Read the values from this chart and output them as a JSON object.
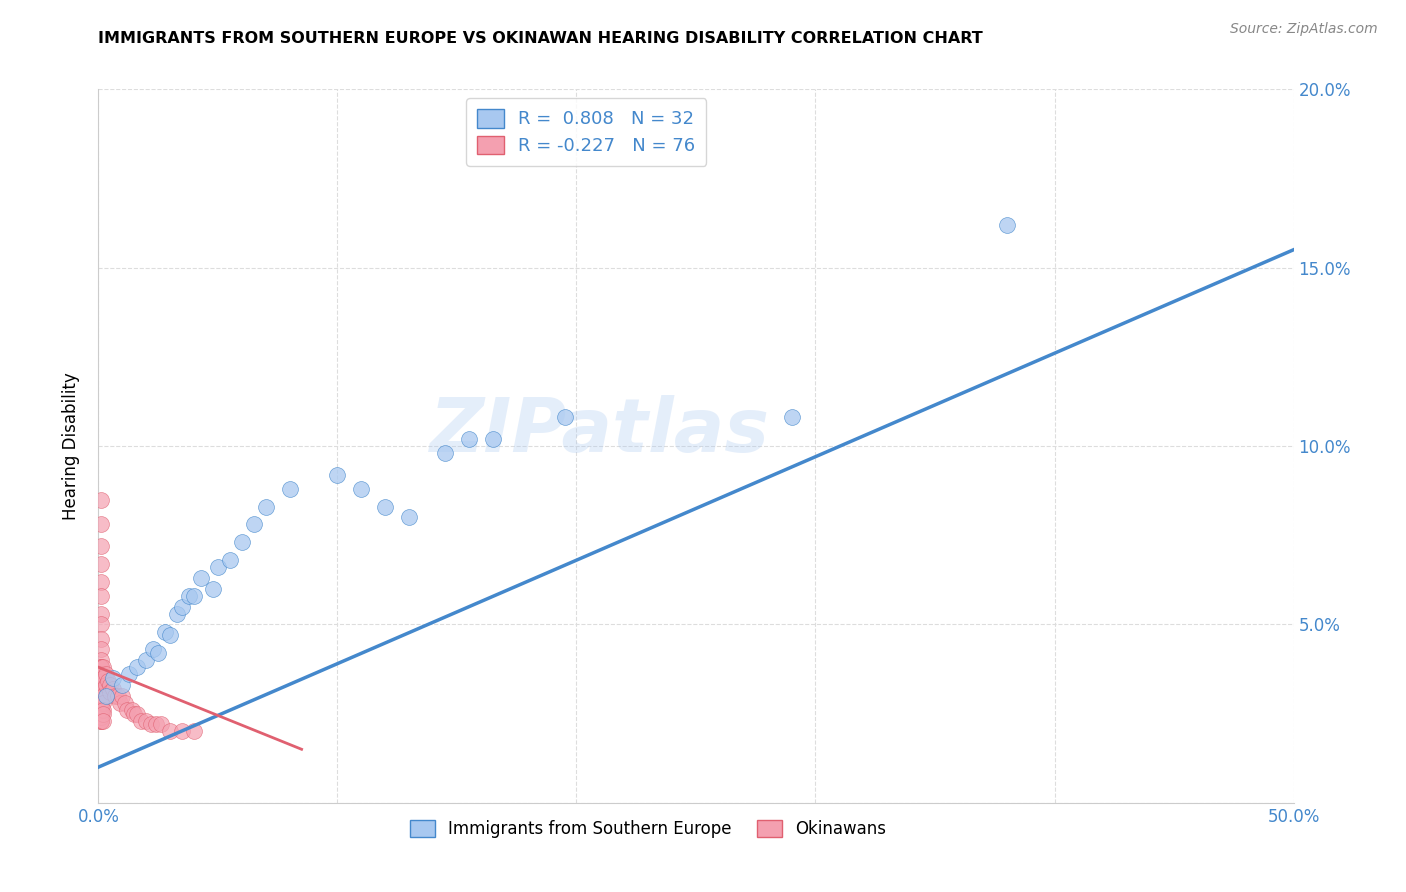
{
  "title": "IMMIGRANTS FROM SOUTHERN EUROPE VS OKINAWAN HEARING DISABILITY CORRELATION CHART",
  "source": "Source: ZipAtlas.com",
  "ylabel": "Hearing Disability",
  "xlim": [
    0.0,
    0.5
  ],
  "ylim": [
    0.0,
    0.2
  ],
  "xticks": [
    0.0,
    0.1,
    0.2,
    0.3,
    0.4,
    0.5
  ],
  "yticks": [
    0.0,
    0.05,
    0.1,
    0.15,
    0.2
  ],
  "xticklabels": [
    "0.0%",
    "",
    "",
    "",
    "",
    "50.0%"
  ],
  "yticklabels_right": [
    "",
    "5.0%",
    "10.0%",
    "15.0%",
    "20.0%"
  ],
  "blue_R": "0.808",
  "blue_N": "32",
  "pink_R": "-0.227",
  "pink_N": "76",
  "blue_label": "Immigrants from Southern Europe",
  "pink_label": "Okinawans",
  "blue_color": "#a8c8f0",
  "pink_color": "#f4a0b0",
  "blue_line_color": "#4488cc",
  "pink_line_color": "#e06070",
  "tick_color": "#4488cc",
  "watermark": "ZIPatlas",
  "watermark_color": "#a8c8f0",
  "blue_line_x0": 0.0,
  "blue_line_y0": 0.01,
  "blue_line_x1": 0.5,
  "blue_line_y1": 0.155,
  "pink_line_x0": 0.0,
  "pink_line_y0": 0.038,
  "pink_line_x1": 0.085,
  "pink_line_y1": 0.015,
  "blue_scatter_x": [
    0.003,
    0.006,
    0.01,
    0.013,
    0.016,
    0.02,
    0.023,
    0.025,
    0.028,
    0.03,
    0.033,
    0.035,
    0.038,
    0.04,
    0.043,
    0.048,
    0.05,
    0.055,
    0.06,
    0.065,
    0.07,
    0.08,
    0.1,
    0.11,
    0.12,
    0.13,
    0.145,
    0.155,
    0.165,
    0.195,
    0.29,
    0.38
  ],
  "blue_scatter_y": [
    0.03,
    0.035,
    0.033,
    0.036,
    0.038,
    0.04,
    0.043,
    0.042,
    0.048,
    0.047,
    0.053,
    0.055,
    0.058,
    0.058,
    0.063,
    0.06,
    0.066,
    0.068,
    0.073,
    0.078,
    0.083,
    0.088,
    0.092,
    0.088,
    0.083,
    0.08,
    0.098,
    0.102,
    0.102,
    0.108,
    0.108,
    0.162
  ],
  "pink_scatter_x": [
    0.001,
    0.001,
    0.001,
    0.001,
    0.001,
    0.001,
    0.001,
    0.001,
    0.001,
    0.001,
    0.001,
    0.001,
    0.001,
    0.001,
    0.001,
    0.001,
    0.001,
    0.001,
    0.001,
    0.001,
    0.001,
    0.001,
    0.001,
    0.001,
    0.001,
    0.001,
    0.001,
    0.001,
    0.001,
    0.001,
    0.001,
    0.001,
    0.001,
    0.001,
    0.001,
    0.001,
    0.001,
    0.001,
    0.001,
    0.001,
    0.001,
    0.001,
    0.001,
    0.001,
    0.001,
    0.002,
    0.002,
    0.002,
    0.002,
    0.002,
    0.002,
    0.002,
    0.002,
    0.003,
    0.003,
    0.004,
    0.005,
    0.005,
    0.006,
    0.007,
    0.008,
    0.009,
    0.01,
    0.011,
    0.012,
    0.014,
    0.015,
    0.016,
    0.018,
    0.02,
    0.022,
    0.024,
    0.026,
    0.03,
    0.035,
    0.04
  ],
  "pink_scatter_y": [
    0.085,
    0.078,
    0.072,
    0.067,
    0.062,
    0.058,
    0.053,
    0.05,
    0.046,
    0.043,
    0.04,
    0.038,
    0.036,
    0.034,
    0.033,
    0.032,
    0.031,
    0.03,
    0.029,
    0.028,
    0.027,
    0.026,
    0.025,
    0.024,
    0.023,
    0.038,
    0.036,
    0.034,
    0.032,
    0.03,
    0.028,
    0.026,
    0.025,
    0.024,
    0.023,
    0.038,
    0.036,
    0.034,
    0.032,
    0.03,
    0.028,
    0.026,
    0.025,
    0.024,
    0.023,
    0.038,
    0.035,
    0.032,
    0.03,
    0.028,
    0.026,
    0.025,
    0.023,
    0.036,
    0.033,
    0.034,
    0.033,
    0.031,
    0.032,
    0.03,
    0.03,
    0.028,
    0.03,
    0.028,
    0.026,
    0.026,
    0.025,
    0.025,
    0.023,
    0.023,
    0.022,
    0.022,
    0.022,
    0.02,
    0.02,
    0.02
  ]
}
